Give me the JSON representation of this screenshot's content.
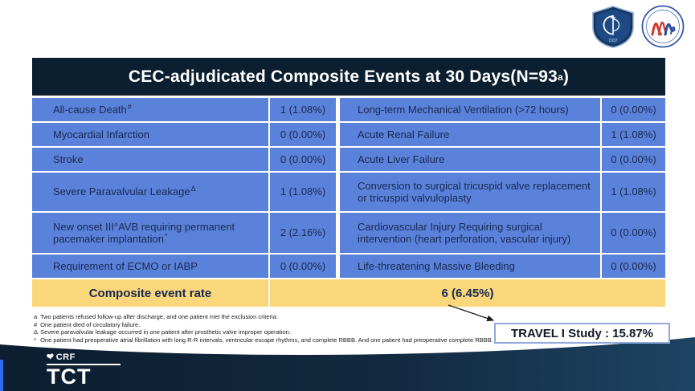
{
  "colors": {
    "header_navy": "#0c1f30",
    "row_blue": "#5b82da",
    "cell_text_navy": "#17294f",
    "composite_yellow": "#fbd77b",
    "footer_navy_left": "#0c1e30",
    "footer_navy_right": "#1e4463",
    "callout_border_blue": "#90a9dc",
    "edge_strip_blue": "#2d6cf0"
  },
  "logos": {
    "shield_year": "1937"
  },
  "header": {
    "title_main": "CEC-adjudicated Composite Events at 30 Days(N=93",
    "title_sup": "a",
    "title_tail": ")"
  },
  "table": {
    "rows": [
      {
        "c1": {
          "text": "All-cause Death",
          "sup": "#"
        },
        "v1": "1 (1.08%)",
        "c2": {
          "text": "Long-term Mechanical Ventilation (>72 hours)",
          "sup": ""
        },
        "v2": "0 (0.00%)"
      },
      {
        "c1": {
          "text": "Myocardial Infarction",
          "sup": ""
        },
        "v1": "0 (0.00%)",
        "c2": {
          "text": "Acute Renal Failure",
          "sup": ""
        },
        "v2": "1 (1.08%)"
      },
      {
        "c1": {
          "text": "Stroke",
          "sup": ""
        },
        "v1": "0 (0.00%)",
        "c2": {
          "text": "Acute Liver Failure",
          "sup": ""
        },
        "v2": "0 (0.00%)"
      },
      {
        "c1": {
          "text": "Severe Paravalvular Leakage",
          "sup": "Δ"
        },
        "v1": "1 (1.08%)",
        "c2": {
          "text": "Conversion to surgical tricuspid valve replacement or tricuspid valvuloplasty",
          "sup": ""
        },
        "v2": "1 (1.08%)"
      },
      {
        "c1": {
          "text": "New onset III°AVB requiring permanent pacemaker implantation",
          "sup": "*"
        },
        "v1": "2 (2.16%)",
        "c2": {
          "text": "Cardiovascular Injury Requiring surgical intervention (heart perforation, vascular injury)",
          "sup": ""
        },
        "v2": "0 (0.00%)"
      },
      {
        "c1": {
          "text": "Requirement of ECMO or IABP",
          "sup": ""
        },
        "v1": "0 (0.00%)",
        "c2": {
          "text": "Life-threatening Massive Bleeding",
          "sup": ""
        },
        "v2": "0 (0.00%)"
      }
    ],
    "composite": {
      "label": "Composite event rate",
      "value": "6 (6.45%)"
    }
  },
  "footnotes": [
    {
      "marker": "a",
      "text": "Two patients refused follow-up after discharge, and one patient met the exclusion criteria."
    },
    {
      "marker": "#",
      "text": "One patient died of circulatory failure."
    },
    {
      "marker": "Δ",
      "text": "Severe paravalvular leakage occurred in one patient after prosthetic valve improper operation."
    },
    {
      "marker": "*",
      "text": "One patient had preoperative atrial fibrillation with long R-R intervals, ventricular escape rhythms, and complete RBBB. And one patient had preoperative complete RBBB."
    }
  ],
  "callout": {
    "text": "TRAVEL I Study : 15.87%"
  },
  "footer": {
    "crf": "CRF",
    "tct": "TCT"
  }
}
